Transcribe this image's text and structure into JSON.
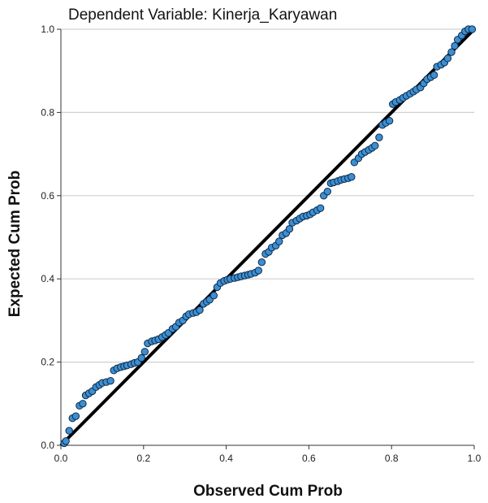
{
  "chart_data": {
    "type": "scatter",
    "title": "Dependent Variable: Kinerja_Karyawan",
    "xlabel": "Observed Cum Prob",
    "ylabel": "Expected Cum Prob",
    "xlim": [
      0.0,
      1.0
    ],
    "ylim": [
      0.0,
      1.0
    ],
    "x_ticks": [
      "0.0",
      "0.2",
      "0.4",
      "0.6",
      "0.8",
      "1.0"
    ],
    "y_ticks": [
      "0.0",
      "0.2",
      "0.4",
      "0.6",
      "0.8",
      "1.0"
    ],
    "grid": "horizontal",
    "reference_line": [
      [
        0.0,
        0.0
      ],
      [
        1.0,
        1.0
      ]
    ],
    "colors": {
      "point_fill": "#3d8fd1",
      "point_stroke": "#0d2a4a",
      "line": "#000000",
      "grid": "#d0d0d0"
    },
    "points": [
      [
        0.008,
        0.005
      ],
      [
        0.012,
        0.01
      ],
      [
        0.02,
        0.035
      ],
      [
        0.028,
        0.065
      ],
      [
        0.036,
        0.07
      ],
      [
        0.045,
        0.095
      ],
      [
        0.053,
        0.1
      ],
      [
        0.06,
        0.12
      ],
      [
        0.068,
        0.125
      ],
      [
        0.076,
        0.13
      ],
      [
        0.085,
        0.14
      ],
      [
        0.093,
        0.145
      ],
      [
        0.1,
        0.15
      ],
      [
        0.11,
        0.152
      ],
      [
        0.12,
        0.155
      ],
      [
        0.128,
        0.18
      ],
      [
        0.136,
        0.185
      ],
      [
        0.145,
        0.188
      ],
      [
        0.153,
        0.19
      ],
      [
        0.16,
        0.192
      ],
      [
        0.17,
        0.195
      ],
      [
        0.178,
        0.198
      ],
      [
        0.186,
        0.2
      ],
      [
        0.195,
        0.21
      ],
      [
        0.203,
        0.225
      ],
      [
        0.21,
        0.245
      ],
      [
        0.22,
        0.25
      ],
      [
        0.228,
        0.252
      ],
      [
        0.236,
        0.255
      ],
      [
        0.245,
        0.26
      ],
      [
        0.253,
        0.265
      ],
      [
        0.26,
        0.27
      ],
      [
        0.27,
        0.28
      ],
      [
        0.278,
        0.285
      ],
      [
        0.286,
        0.295
      ],
      [
        0.295,
        0.3
      ],
      [
        0.303,
        0.31
      ],
      [
        0.31,
        0.315
      ],
      [
        0.32,
        0.318
      ],
      [
        0.328,
        0.32
      ],
      [
        0.336,
        0.325
      ],
      [
        0.345,
        0.34
      ],
      [
        0.353,
        0.345
      ],
      [
        0.36,
        0.35
      ],
      [
        0.37,
        0.36
      ],
      [
        0.378,
        0.38
      ],
      [
        0.386,
        0.39
      ],
      [
        0.395,
        0.395
      ],
      [
        0.403,
        0.398
      ],
      [
        0.41,
        0.4
      ],
      [
        0.42,
        0.402
      ],
      [
        0.428,
        0.404
      ],
      [
        0.436,
        0.406
      ],
      [
        0.445,
        0.408
      ],
      [
        0.453,
        0.41
      ],
      [
        0.46,
        0.412
      ],
      [
        0.47,
        0.415
      ],
      [
        0.478,
        0.42
      ],
      [
        0.486,
        0.44
      ],
      [
        0.495,
        0.46
      ],
      [
        0.503,
        0.465
      ],
      [
        0.51,
        0.475
      ],
      [
        0.52,
        0.48
      ],
      [
        0.528,
        0.49
      ],
      [
        0.536,
        0.505
      ],
      [
        0.545,
        0.51
      ],
      [
        0.553,
        0.52
      ],
      [
        0.56,
        0.535
      ],
      [
        0.57,
        0.54
      ],
      [
        0.578,
        0.545
      ],
      [
        0.586,
        0.55
      ],
      [
        0.595,
        0.552
      ],
      [
        0.603,
        0.555
      ],
      [
        0.61,
        0.56
      ],
      [
        0.62,
        0.565
      ],
      [
        0.628,
        0.57
      ],
      [
        0.636,
        0.6
      ],
      [
        0.645,
        0.61
      ],
      [
        0.653,
        0.63
      ],
      [
        0.66,
        0.632
      ],
      [
        0.67,
        0.635
      ],
      [
        0.678,
        0.638
      ],
      [
        0.686,
        0.64
      ],
      [
        0.695,
        0.642
      ],
      [
        0.703,
        0.645
      ],
      [
        0.71,
        0.68
      ],
      [
        0.72,
        0.69
      ],
      [
        0.728,
        0.7
      ],
      [
        0.736,
        0.705
      ],
      [
        0.745,
        0.71
      ],
      [
        0.753,
        0.715
      ],
      [
        0.76,
        0.72
      ],
      [
        0.77,
        0.74
      ],
      [
        0.778,
        0.77
      ],
      [
        0.786,
        0.775
      ],
      [
        0.795,
        0.78
      ],
      [
        0.803,
        0.82
      ],
      [
        0.81,
        0.825
      ],
      [
        0.82,
        0.83
      ],
      [
        0.828,
        0.835
      ],
      [
        0.836,
        0.84
      ],
      [
        0.845,
        0.845
      ],
      [
        0.853,
        0.85
      ],
      [
        0.86,
        0.855
      ],
      [
        0.87,
        0.86
      ],
      [
        0.878,
        0.87
      ],
      [
        0.886,
        0.88
      ],
      [
        0.895,
        0.885
      ],
      [
        0.903,
        0.89
      ],
      [
        0.91,
        0.91
      ],
      [
        0.92,
        0.915
      ],
      [
        0.928,
        0.92
      ],
      [
        0.936,
        0.93
      ],
      [
        0.945,
        0.945
      ],
      [
        0.953,
        0.96
      ],
      [
        0.96,
        0.975
      ],
      [
        0.97,
        0.985
      ],
      [
        0.978,
        0.995
      ],
      [
        0.986,
        1.0
      ],
      [
        0.995,
        1.0
      ]
    ]
  }
}
